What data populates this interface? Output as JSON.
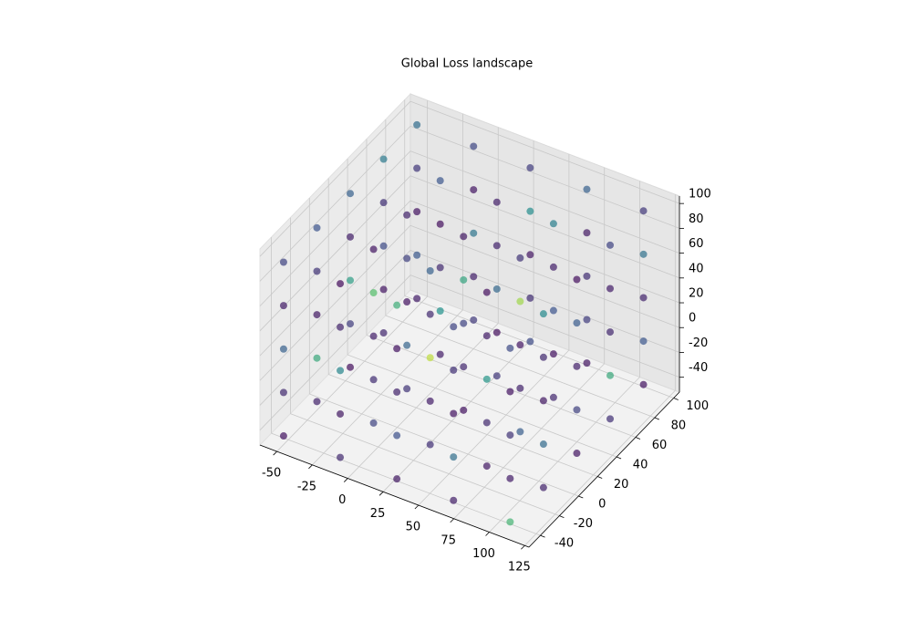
{
  "chart_data": {
    "type": "scatter3d",
    "title": "Global Loss landscape",
    "cmap": "viridis",
    "alpha": 0.7,
    "grid": true,
    "xlim": [
      -62,
      128
    ],
    "ylim": [
      -52,
      106
    ],
    "zlim": [
      -52,
      106
    ],
    "xticks": [
      -50,
      -25,
      0,
      25,
      50,
      75,
      100,
      125
    ],
    "yticks": [
      -40,
      -20,
      0,
      20,
      40,
      60,
      80,
      100
    ],
    "zticks": [
      -40,
      -20,
      0,
      20,
      40,
      60,
      80,
      100
    ],
    "x": [
      -50,
      -50,
      -50,
      -50,
      -50,
      -50,
      -50,
      -50,
      -50,
      -50,
      -50,
      -50,
      -50,
      -50,
      -50,
      -50,
      -50,
      -50,
      -50,
      -50,
      -50,
      -50,
      -50,
      -50,
      -50,
      -10,
      -10,
      -10,
      -10,
      -10,
      -10,
      -10,
      -10,
      -10,
      -10,
      -10,
      -10,
      -10,
      -10,
      -10,
      -10,
      -10,
      -10,
      -10,
      -10,
      -10,
      -10,
      -10,
      -10,
      -10,
      30,
      30,
      30,
      30,
      30,
      30,
      30,
      30,
      30,
      30,
      30,
      30,
      30,
      30,
      30,
      30,
      30,
      30,
      30,
      30,
      30,
      30,
      30,
      30,
      30,
      70,
      70,
      70,
      70,
      70,
      70,
      70,
      70,
      70,
      70,
      70,
      70,
      70,
      70,
      70,
      70,
      70,
      70,
      70,
      70,
      70,
      70,
      70,
      70,
      70,
      110,
      110,
      110,
      110,
      110,
      110,
      110,
      110,
      110,
      110,
      110,
      110,
      110,
      110,
      110,
      110,
      110,
      110,
      110,
      110,
      110,
      110,
      110,
      110,
      110
    ],
    "y": [
      -45,
      -45,
      -45,
      -45,
      -45,
      -10,
      -10,
      -10,
      -10,
      -10,
      25,
      25,
      25,
      25,
      25,
      60,
      60,
      60,
      60,
      60,
      95,
      95,
      95,
      95,
      95,
      -45,
      -45,
      -45,
      -45,
      -45,
      -10,
      -10,
      -10,
      -10,
      -10,
      25,
      25,
      25,
      25,
      25,
      60,
      60,
      60,
      60,
      60,
      95,
      95,
      95,
      95,
      95,
      -45,
      -45,
      -45,
      -45,
      -45,
      -10,
      -10,
      -10,
      -10,
      -10,
      25,
      25,
      25,
      25,
      25,
      60,
      60,
      60,
      60,
      60,
      95,
      95,
      95,
      95,
      95,
      -45,
      -45,
      -45,
      -45,
      -45,
      -10,
      -10,
      -10,
      -10,
      -10,
      25,
      25,
      25,
      25,
      25,
      60,
      60,
      60,
      60,
      60,
      95,
      95,
      95,
      95,
      95,
      -45,
      -45,
      -45,
      -45,
      -45,
      -10,
      -10,
      -10,
      -10,
      -10,
      25,
      25,
      25,
      25,
      25,
      60,
      60,
      60,
      60,
      60,
      95,
      95,
      95,
      95,
      95
    ],
    "z": [
      -45,
      -10,
      25,
      60,
      95,
      -45,
      -10,
      25,
      60,
      95,
      -45,
      -10,
      25,
      60,
      95,
      -45,
      -10,
      25,
      60,
      95,
      -45,
      -10,
      25,
      60,
      95,
      -45,
      -10,
      25,
      60,
      95,
      -45,
      -10,
      25,
      60,
      95,
      -45,
      -10,
      25,
      60,
      95,
      -45,
      -10,
      25,
      60,
      95,
      -45,
      -10,
      25,
      60,
      95,
      -45,
      -10,
      25,
      60,
      95,
      -45,
      -10,
      25,
      60,
      95,
      -45,
      -10,
      25,
      60,
      95,
      -45,
      -10,
      25,
      60,
      95,
      -45,
      -10,
      25,
      60,
      95,
      -45,
      -10,
      25,
      60,
      95,
      -45,
      -10,
      25,
      60,
      95,
      -45,
      -10,
      25,
      60,
      95,
      -45,
      -10,
      25,
      60,
      95,
      -45,
      -10,
      25,
      60,
      95,
      -45,
      -10,
      25,
      60,
      95,
      -45,
      -10,
      25,
      60,
      95,
      -45,
      -10,
      25,
      60,
      95,
      -45,
      -10,
      25,
      60,
      95,
      -45,
      -10,
      25,
      60,
      95
    ],
    "c": [
      0.05,
      0.12,
      0.3,
      0.08,
      0.2,
      0.1,
      0.6,
      0.07,
      0.15,
      0.25,
      0.04,
      0.18,
      0.55,
      0.09,
      0.3,
      0.11,
      0.06,
      0.22,
      0.14,
      0.4,
      0.08,
      0.27,
      0.05,
      0.16,
      0.35,
      0.12,
      0.07,
      0.45,
      0.1,
      0.03,
      0.2,
      0.13,
      0.09,
      0.7,
      0.06,
      0.15,
      0.32,
      0.05,
      0.19,
      0.1,
      0.08,
      0.5,
      0.12,
      0.04,
      0.26,
      0.17,
      0.09,
      0.38,
      0.06,
      0.21,
      0.07,
      0.24,
      0.1,
      0.05,
      0.62,
      0.14,
      0.08,
      0.9,
      0.12,
      0.3,
      0.05,
      0.11,
      0.2,
      0.58,
      0.07,
      0.16,
      0.04,
      0.33,
      0.1,
      0.09,
      0.22,
      0.13,
      0.06,
      0.48,
      0.18,
      0.09,
      0.36,
      0.05,
      0.14,
      0.2,
      0.07,
      0.12,
      0.52,
      0.08,
      0.04,
      0.29,
      0.1,
      0.06,
      0.85,
      0.15,
      0.11,
      0.05,
      0.25,
      0.09,
      0.42,
      0.06,
      0.18,
      0.13,
      0.07,
      0.3,
      0.65,
      0.08,
      0.15,
      0.05,
      0.22,
      0.1,
      0.34,
      0.07,
      0.12,
      0.47,
      0.06,
      0.19,
      0.09,
      0.28,
      0.04,
      0.14,
      0.6,
      0.11,
      0.08,
      0.2,
      0.05,
      0.26,
      0.1,
      0.37,
      0.16
    ]
  }
}
